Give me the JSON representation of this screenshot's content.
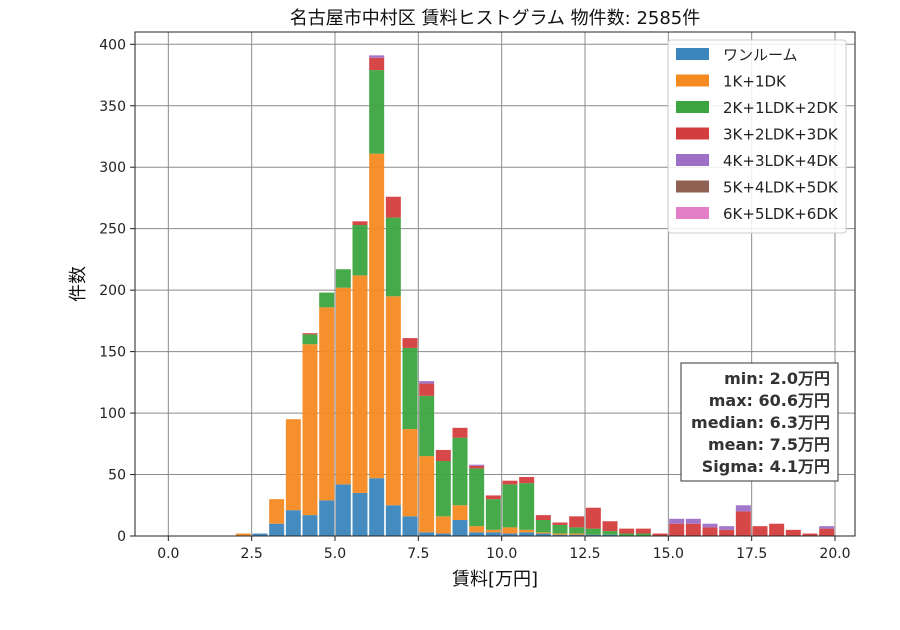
{
  "chart_data": {
    "type": "bar",
    "title": "名古屋市中村区 賃料ヒストグラム  物件数: 2585件",
    "xlabel": "賃料[万円]",
    "ylabel": "件数",
    "xlim": [
      -1.0,
      20.6
    ],
    "ylim": [
      0,
      410
    ],
    "x_ticks": [
      0.0,
      2.5,
      5.0,
      7.5,
      10.0,
      12.5,
      15.0,
      17.5,
      20.0
    ],
    "x_tick_labels": [
      "0.0",
      "2.5",
      "5.0",
      "7.5",
      "10.0",
      "12.5",
      "15.0",
      "17.5",
      "20.0"
    ],
    "y_ticks": [
      0,
      50,
      100,
      150,
      200,
      250,
      300,
      350,
      400
    ],
    "y_tick_labels": [
      "0",
      "50",
      "100",
      "150",
      "200",
      "250",
      "300",
      "350",
      "400"
    ],
    "grid": true,
    "stacked": true,
    "bin_width": 0.5,
    "legend_position": "top-right",
    "bins": [
      2.0,
      2.5,
      3.0,
      3.5,
      4.0,
      4.5,
      5.0,
      5.5,
      6.0,
      6.5,
      7.0,
      7.5,
      8.0,
      8.5,
      9.0,
      9.5,
      10.0,
      10.5,
      11.0,
      11.5,
      12.0,
      12.5,
      13.0,
      13.5,
      14.0,
      14.5,
      15.0,
      15.5,
      16.0,
      16.5,
      17.0,
      17.5,
      18.0,
      18.5,
      19.0,
      19.5
    ],
    "series": [
      {
        "name": "ワンルーム",
        "color": "#3a86bd",
        "values": [
          0,
          2,
          10,
          21,
          17,
          29,
          42,
          35,
          47,
          25,
          16,
          3,
          2,
          13,
          3,
          3,
          2,
          3,
          2,
          1,
          1,
          1,
          1,
          0,
          0,
          0,
          0,
          0,
          0,
          0,
          0,
          0,
          0,
          0,
          0,
          0
        ]
      },
      {
        "name": "1K+1DK",
        "color": "#f58a22",
        "values": [
          2,
          0,
          20,
          74,
          139,
          157,
          160,
          177,
          264,
          170,
          71,
          62,
          14,
          12,
          5,
          2,
          5,
          2,
          1,
          1,
          1,
          0,
          0,
          0,
          0,
          0,
          0,
          0,
          0,
          0,
          0,
          0,
          0,
          0,
          0,
          0
        ]
      },
      {
        "name": "2K+1LDK+2DK",
        "color": "#3da540",
        "values": [
          0,
          0,
          0,
          0,
          8,
          12,
          15,
          41,
          68,
          64,
          66,
          49,
          45,
          55,
          47,
          25,
          35,
          38,
          10,
          7,
          5,
          5,
          3,
          2,
          2,
          0,
          0,
          0,
          0,
          0,
          0,
          0,
          0,
          0,
          0,
          0
        ]
      },
      {
        "name": "3K+2LDK+3DK",
        "color": "#d43d3d",
        "values": [
          0,
          0,
          0,
          0,
          1,
          0,
          0,
          3,
          10,
          17,
          8,
          10,
          9,
          8,
          2,
          3,
          3,
          5,
          4,
          2,
          9,
          17,
          8,
          4,
          4,
          2,
          10,
          10,
          7,
          5,
          20,
          8,
          10,
          5,
          2,
          6
        ]
      },
      {
        "name": "4K+3LDK+4DK",
        "color": "#9d6fc6",
        "values": [
          0,
          0,
          0,
          0,
          0,
          0,
          0,
          0,
          2,
          0,
          0,
          2,
          0,
          0,
          1,
          0,
          0,
          0,
          0,
          0,
          0,
          0,
          0,
          0,
          0,
          0,
          4,
          4,
          3,
          3,
          5,
          0,
          0,
          0,
          0,
          2
        ]
      },
      {
        "name": "5K+4LDK+5DK",
        "color": "#8f6152",
        "values": [
          0,
          0,
          0,
          0,
          0,
          0,
          0,
          0,
          0,
          0,
          0,
          0,
          0,
          0,
          0,
          0,
          0,
          0,
          0,
          0,
          0,
          0,
          0,
          0,
          0,
          0,
          0,
          0,
          0,
          0,
          0,
          0,
          0,
          0,
          0,
          0
        ]
      },
      {
        "name": "6K+5LDK+6DK",
        "color": "#e37fc7",
        "values": [
          0,
          0,
          0,
          0,
          0,
          0,
          0,
          0,
          0,
          0,
          0,
          0,
          0,
          0,
          0,
          0,
          0,
          0,
          0,
          0,
          0,
          0,
          0,
          0,
          0,
          0,
          0,
          0,
          0,
          0,
          0,
          0,
          0,
          0,
          0,
          0
        ]
      }
    ],
    "stats": {
      "min": "min: 2.0万円",
      "max": "max: 60.6万円",
      "median": "median: 6.3万円",
      "mean": "mean: 7.5万円",
      "sigma": "Sigma: 4.1万円"
    }
  }
}
